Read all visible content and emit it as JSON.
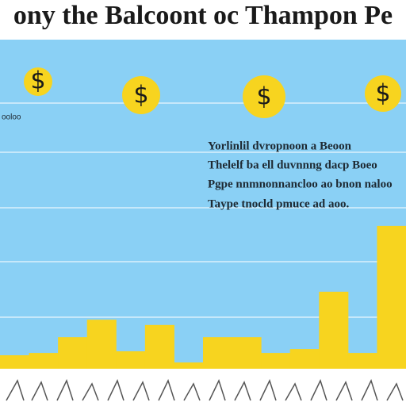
{
  "chart_data": {
    "type": "bar",
    "title": "ony the Balcoont oc Thampon Pe",
    "categories": [
      null,
      null,
      null,
      null,
      null,
      null,
      null,
      null,
      null,
      null,
      null,
      null,
      null,
      null
    ],
    "values": [
      4.1,
      4.8,
      9.6,
      14.9,
      5.3,
      13.3,
      1.9,
      9.6,
      9.6,
      4.8,
      6,
      23.4,
      4.8,
      43.4
    ],
    "color": "#f7d41f",
    "ylim": [
      0,
      100
    ],
    "annotations": [
      "$",
      "$",
      "$",
      "$",
      "ooloo",
      "Yorlinlil dvropnoon a Beoon",
      "Thelelf ba ell duvnnng dacp Boeo",
      "Pgpe nnmnonnancloo ao bnon naloo",
      "Taype tnocld pmuce ad aoo."
    ]
  }
}
